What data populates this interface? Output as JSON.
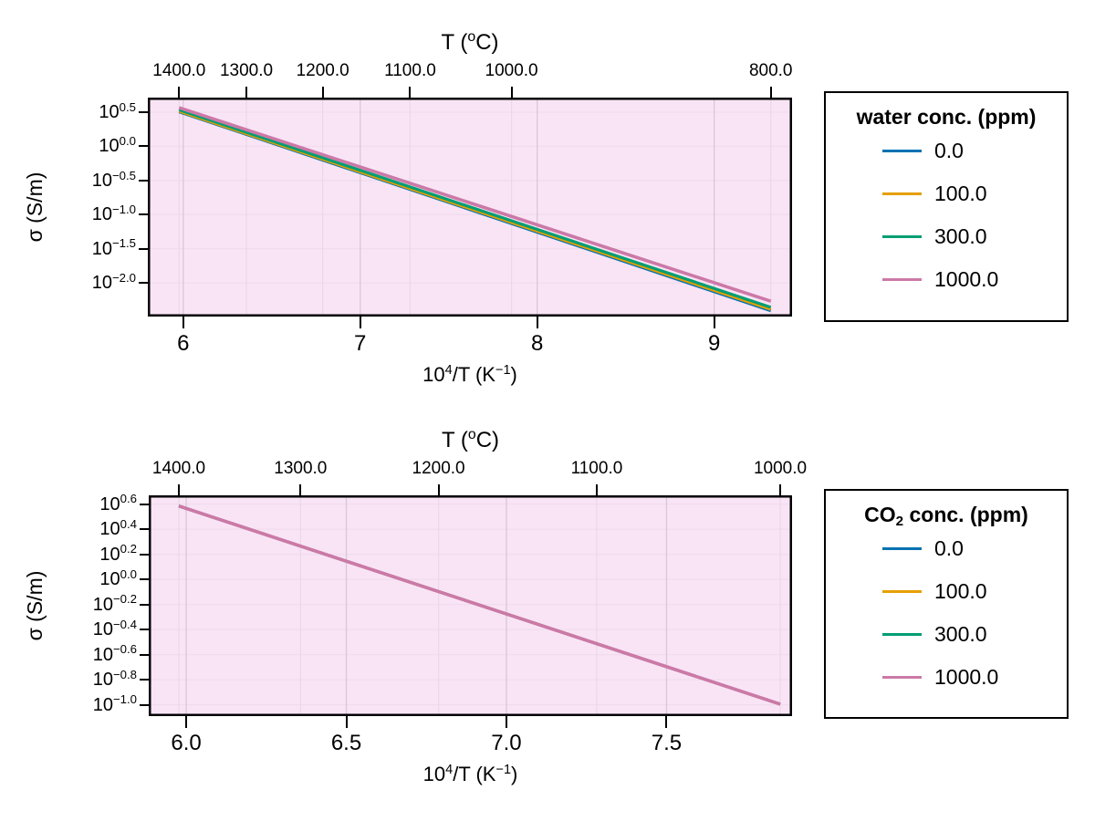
{
  "figure": {
    "background": "#ffffff",
    "plot_background": "#f9e4f6",
    "grid_horizontal_color": "#f0dcec",
    "grid_vertical_color": "#d8c7d6",
    "grid_vertical_light_color": "#ead7e7",
    "spine_color": "#000000",
    "log_base_label": "10",
    "palette": {
      "blue": "#0072B2",
      "orange": "#E69F00",
      "green": "#009E73",
      "pink": "#CC79A7"
    }
  },
  "chart_data": [
    {
      "type": "line",
      "scale": "log10-y vs inverse temperature, lines are log-linear (Arrhenius)",
      "top_axis_title_parts": [
        [
          "T (",
          ""
        ],
        [
          "o",
          "sup"
        ],
        [
          "C)",
          ""
        ]
      ],
      "xlabel_parts": [
        [
          "10",
          ""
        ],
        [
          "4",
          "sup"
        ],
        [
          "/T (K",
          ""
        ],
        [
          "−1",
          "sup"
        ],
        [
          ")",
          ""
        ]
      ],
      "ylabel": "σ (S/m)",
      "xlim": [
        5.8,
        9.44
      ],
      "ylim_log10": [
        0.714,
        -2.495
      ],
      "x_ticks": {
        "values": [
          6,
          7,
          8,
          9
        ],
        "labels": [
          "6",
          "7",
          "8",
          "9"
        ]
      },
      "y_ticks": {
        "values": [
          0.5,
          0.0,
          -0.5,
          -1.0,
          -1.5,
          -2.0
        ],
        "labels": [
          "0.5",
          "0.0",
          "−0.5",
          "−1.0",
          "−1.5",
          "−2.0"
        ]
      },
      "top_ticks": {
        "values_invT": [
          5.977,
          6.357,
          6.788,
          7.282,
          7.855,
          9.32
        ],
        "labels": [
          "1400.0",
          "1300.0",
          "1200.0",
          "1100.0",
          "1000.0",
          "800.0"
        ]
      },
      "legend_title_parts": [
        [
          "water conc. (ppm)",
          ""
        ]
      ],
      "series": [
        {
          "name": "0.0",
          "color_key": "blue",
          "x": [
            5.977,
            9.32
          ],
          "log10_sigma": [
            0.505,
            -2.41
          ],
          "width": 3.2
        },
        {
          "name": "100.0",
          "color_key": "orange",
          "x": [
            5.977,
            9.32
          ],
          "log10_sigma": [
            0.515,
            -2.39
          ],
          "width": 3.2
        },
        {
          "name": "300.0",
          "color_key": "green",
          "x": [
            5.977,
            9.32
          ],
          "log10_sigma": [
            0.535,
            -2.36
          ],
          "width": 3.2
        },
        {
          "name": "1000.0",
          "color_key": "pink",
          "x": [
            5.977,
            9.32
          ],
          "log10_sigma": [
            0.565,
            -2.27
          ],
          "width": 3.6
        }
      ]
    },
    {
      "type": "line",
      "scale": "log10-y vs inverse temperature, lines are log-linear (Arrhenius); all four series overlap",
      "top_axis_title_parts": [
        [
          "T (",
          ""
        ],
        [
          "o",
          "sup"
        ],
        [
          "C)",
          ""
        ]
      ],
      "xlabel_parts": [
        [
          "10",
          ""
        ],
        [
          "4",
          "sup"
        ],
        [
          "/T (K",
          ""
        ],
        [
          "−1",
          "sup"
        ],
        [
          ")",
          ""
        ]
      ],
      "ylabel": "σ (S/m)",
      "xlim": [
        5.883,
        7.892
      ],
      "ylim_log10": [
        0.67,
        -1.09
      ],
      "x_ticks": {
        "values": [
          6.0,
          6.5,
          7.0,
          7.5
        ],
        "labels": [
          "6.0",
          "6.5",
          "7.0",
          "7.5"
        ]
      },
      "y_ticks": {
        "values": [
          0.6,
          0.4,
          0.2,
          0.0,
          -0.2,
          -0.4,
          -0.6,
          -0.8,
          -1.0
        ],
        "labels": [
          "0.6",
          "0.4",
          "0.2",
          "0.0",
          "−0.2",
          "−0.4",
          "−0.6",
          "−0.8",
          "−1.0"
        ]
      },
      "top_ticks": {
        "values_invT": [
          5.977,
          6.357,
          6.788,
          7.282,
          7.855
        ],
        "labels": [
          "1400.0",
          "1300.0",
          "1200.0",
          "1100.0",
          "1000.0"
        ]
      },
      "legend_title_parts": [
        [
          "CO",
          ""
        ],
        [
          "2",
          "sub"
        ],
        [
          " conc. (ppm)",
          ""
        ]
      ],
      "series": [
        {
          "name": "0.0",
          "color_key": "blue",
          "x": [
            5.977,
            7.855
          ],
          "log10_sigma": [
            0.585,
            -0.995
          ],
          "width": 3.2
        },
        {
          "name": "100.0",
          "color_key": "orange",
          "x": [
            5.977,
            7.855
          ],
          "log10_sigma": [
            0.585,
            -0.995
          ],
          "width": 3.2
        },
        {
          "name": "300.0",
          "color_key": "green",
          "x": [
            5.977,
            7.855
          ],
          "log10_sigma": [
            0.585,
            -0.995
          ],
          "width": 3.2
        },
        {
          "name": "1000.0",
          "color_key": "pink",
          "x": [
            5.977,
            7.855
          ],
          "log10_sigma": [
            0.585,
            -0.995
          ],
          "width": 3.6
        }
      ]
    }
  ]
}
